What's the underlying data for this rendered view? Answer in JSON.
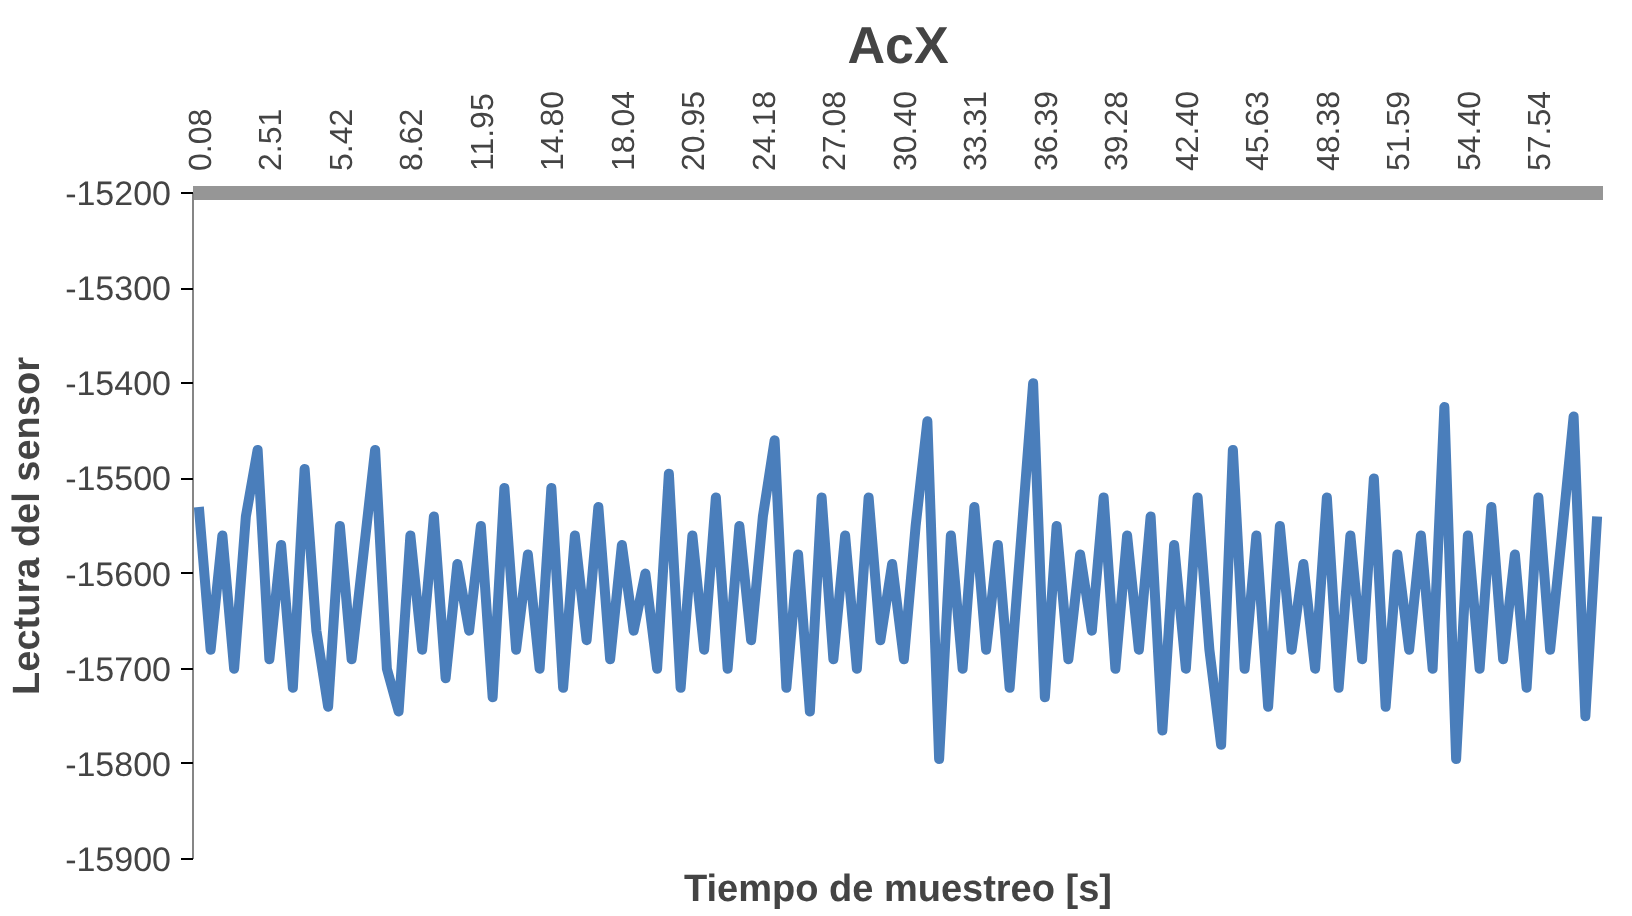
{
  "chart_data": {
    "type": "line",
    "title": "AcX",
    "xlabel": "Tiempo de muestreo [s]",
    "ylabel": "Lectura del sensor",
    "categories": [
      "0.08",
      null,
      null,
      null,
      null,
      null,
      "2.51",
      null,
      null,
      null,
      null,
      null,
      "5.42",
      null,
      null,
      null,
      null,
      null,
      "8.62",
      null,
      null,
      null,
      null,
      null,
      "11.95",
      null,
      null,
      null,
      null,
      null,
      "14.80",
      null,
      null,
      null,
      null,
      null,
      "18.04",
      null,
      null,
      null,
      null,
      null,
      "20.95",
      null,
      null,
      null,
      null,
      null,
      "24.18",
      null,
      null,
      null,
      null,
      null,
      "27.08",
      null,
      null,
      null,
      null,
      null,
      "30.40",
      null,
      null,
      null,
      null,
      null,
      "33.31",
      null,
      null,
      null,
      null,
      null,
      "36.39",
      null,
      null,
      null,
      null,
      null,
      "39.28",
      null,
      null,
      null,
      null,
      null,
      "42.40",
      null,
      null,
      null,
      null,
      null,
      "45.63",
      null,
      null,
      null,
      null,
      null,
      "48.38",
      null,
      null,
      null,
      null,
      null,
      "51.59",
      null,
      null,
      null,
      null,
      null,
      "54.40",
      null,
      null,
      null,
      null,
      null,
      "57.54",
      null,
      null,
      null,
      null,
      null
    ],
    "series": [
      {
        "color": "#4a7ebb",
        "values": [
          -15530,
          -15680,
          -15560,
          -15700,
          -15540,
          -15470,
          -15690,
          -15570,
          -15720,
          -15490,
          -15660,
          -15740,
          -15550,
          -15690,
          -15580,
          -15470,
          -15700,
          -15745,
          -15560,
          -15680,
          -15540,
          -15710,
          -15590,
          -15660,
          -15550,
          -15730,
          -15510,
          -15680,
          -15580,
          -15700,
          -15510,
          -15720,
          -15560,
          -15670,
          -15530,
          -15690,
          -15570,
          -15660,
          -15600,
          -15700,
          -15495,
          -15720,
          -15560,
          -15680,
          -15520,
          -15700,
          -15550,
          -15670,
          -15540,
          -15460,
          -15720,
          -15580,
          -15745,
          -15520,
          -15690,
          -15560,
          -15700,
          -15520,
          -15670,
          -15590,
          -15690,
          -15550,
          -15440,
          -15795,
          -15560,
          -15700,
          -15530,
          -15680,
          -15570,
          -15720,
          -15560,
          -15400,
          -15730,
          -15550,
          -15690,
          -15580,
          -15660,
          -15520,
          -15700,
          -15560,
          -15680,
          -15540,
          -15765,
          -15570,
          -15700,
          -15520,
          -15680,
          -15780,
          -15470,
          -15700,
          -15560,
          -15740,
          -15550,
          -15680,
          -15590,
          -15700,
          -15520,
          -15720,
          -15560,
          -15690,
          -15500,
          -15740,
          -15580,
          -15680,
          -15560,
          -15700,
          -15425,
          -15795,
          -15560,
          -15700,
          -15530,
          -15690,
          -15580,
          -15720,
          -15520,
          -15680,
          -15560,
          -15435,
          -15750,
          -15540
        ]
      }
    ],
    "ylim": [
      -15900,
      -15200
    ],
    "yticks": [
      -15900,
      -15800,
      -15700,
      -15600,
      -15500,
      -15400,
      -15300,
      -15200
    ],
    "grid": false,
    "line_style": "solid",
    "marker": "none"
  }
}
